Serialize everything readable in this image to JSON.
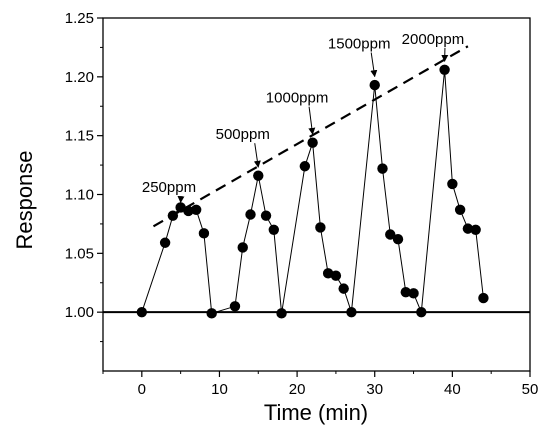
{
  "chart_data": {
    "type": "scatter",
    "xlabel": "Time (min)",
    "ylabel": "Response",
    "xlim": [
      -5,
      50
    ],
    "ylim": [
      0.95,
      1.25
    ],
    "x_ticks": [
      0,
      10,
      20,
      30,
      40,
      50
    ],
    "y_ticks": [
      1.0,
      1.05,
      1.1,
      1.15,
      1.2,
      1.25
    ],
    "grid": false,
    "baseline": 1.0,
    "series": [
      {
        "style": "line-with-markers",
        "points": [
          [
            0,
            1.0
          ],
          [
            3,
            1.059
          ],
          [
            4,
            1.082
          ],
          [
            5,
            1.089
          ],
          [
            6,
            1.086
          ],
          [
            7,
            1.087
          ],
          [
            8,
            1.067
          ],
          [
            9,
            0.999
          ],
          [
            12,
            1.005
          ],
          [
            13,
            1.055
          ],
          [
            14,
            1.083
          ],
          [
            15,
            1.116
          ],
          [
            16,
            1.082
          ],
          [
            17,
            1.07
          ],
          [
            18,
            0.999
          ],
          [
            21,
            1.124
          ],
          [
            22,
            1.144
          ],
          [
            23,
            1.072
          ],
          [
            24,
            1.033
          ],
          [
            25,
            1.031
          ],
          [
            26,
            1.02
          ],
          [
            27,
            1.0
          ],
          [
            30,
            1.193
          ],
          [
            31,
            1.122
          ],
          [
            32,
            1.066
          ],
          [
            33,
            1.062
          ],
          [
            34,
            1.017
          ],
          [
            35,
            1.016
          ],
          [
            36,
            1.0
          ],
          [
            39,
            1.206
          ],
          [
            40,
            1.109
          ],
          [
            41,
            1.087
          ],
          [
            42,
            1.071
          ],
          [
            43,
            1.07
          ],
          [
            44,
            1.012
          ]
        ]
      }
    ],
    "trend_line": {
      "style": "dashed",
      "from": [
        1.5,
        1.073
      ],
      "to": [
        42,
        1.226
      ]
    },
    "annotations": [
      {
        "text": "250ppm",
        "text_at": [
          3.5,
          1.102
        ],
        "arrow_to": [
          5,
          1.089
        ]
      },
      {
        "text": "500ppm",
        "text_at": [
          13,
          1.147
        ],
        "arrow_to": [
          15,
          1.119
        ]
      },
      {
        "text": "1000ppm",
        "text_at": [
          20,
          1.178
        ],
        "arrow_to": [
          22,
          1.147
        ]
      },
      {
        "text": "1500ppm",
        "text_at": [
          28,
          1.224
        ],
        "arrow_to": [
          30,
          1.196
        ]
      },
      {
        "text": "2000ppm",
        "text_at": [
          37.5,
          1.228
        ],
        "arrow_to": [
          39,
          1.209
        ]
      }
    ]
  }
}
